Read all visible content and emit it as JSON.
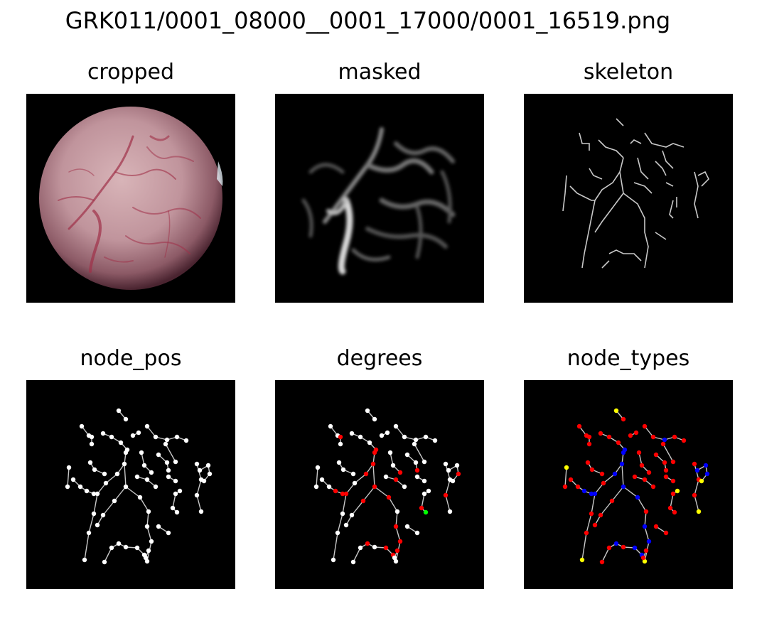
{
  "figure": {
    "suptitle": "GRK011/0001_08000__0001_17000/0001_16519.png",
    "panels": [
      {
        "key": "cropped",
        "title": "cropped"
      },
      {
        "key": "masked",
        "title": "masked"
      },
      {
        "key": "skeleton",
        "title": "skeleton"
      },
      {
        "key": "node_pos",
        "title": "node_pos"
      },
      {
        "key": "degrees",
        "title": "degrees"
      },
      {
        "key": "node_types",
        "title": "node_types"
      }
    ]
  },
  "colors": {
    "background": "#000000",
    "skeleton_line": "#c8c8c8",
    "node_white": "#ffffff",
    "node_red": "#ff0000",
    "node_green": "#00ff00",
    "node_blue": "#0000ff",
    "node_yellow": "#ffff00",
    "tissue_base": "#c8a0a8",
    "vessel": "#a03048"
  }
}
